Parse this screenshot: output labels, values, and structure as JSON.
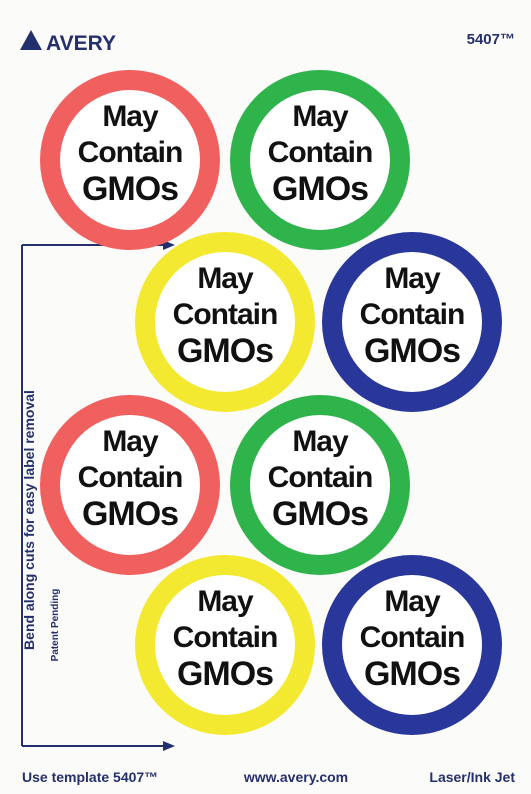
{
  "header": {
    "brand": "AVERY",
    "product": "5407™"
  },
  "side": {
    "instruction": "Bend along cuts for easy label removal",
    "patent": "Patent Pending"
  },
  "labels": [
    {
      "lines": [
        "May",
        "Contain",
        "GMOs"
      ],
      "color": "#f0605f"
    },
    {
      "lines": [
        "May",
        "Contain",
        "GMOs"
      ],
      "color": "#2fb34b"
    },
    {
      "lines": [
        "May",
        "Contain",
        "GMOs"
      ],
      "color": "#f4e931"
    },
    {
      "lines": [
        "May",
        "Contain",
        "GMOs"
      ],
      "color": "#29369a"
    },
    {
      "lines": [
        "May",
        "Contain",
        "GMOs"
      ],
      "color": "#f0605f"
    },
    {
      "lines": [
        "May",
        "Contain",
        "GMOs"
      ],
      "color": "#2fb34b"
    },
    {
      "lines": [
        "May",
        "Contain",
        "GMOs"
      ],
      "color": "#f4e931"
    },
    {
      "lines": [
        "May",
        "Contain",
        "GMOs"
      ],
      "color": "#29369a"
    }
  ],
  "footer": {
    "template": "Use template 5407™",
    "website": "www.avery.com",
    "printer": "Laser/Ink Jet"
  }
}
